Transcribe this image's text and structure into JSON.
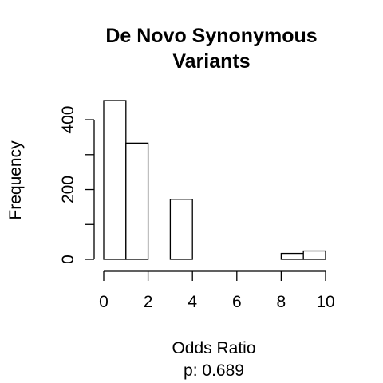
{
  "chart_data": {
    "type": "bar",
    "title_lines": [
      "De Novo Synonymous",
      "Variants"
    ],
    "xlabel": "Odds Ratio",
    "subtitle": "p: 0.689",
    "ylabel": "Frequency",
    "bins": [
      {
        "start": 0,
        "end": 1,
        "count": 455
      },
      {
        "start": 1,
        "end": 2,
        "count": 333
      },
      {
        "start": 2,
        "end": 3,
        "count": 0
      },
      {
        "start": 3,
        "end": 4,
        "count": 172
      },
      {
        "start": 4,
        "end": 5,
        "count": 0
      },
      {
        "start": 5,
        "end": 6,
        "count": 0
      },
      {
        "start": 6,
        "end": 7,
        "count": 0
      },
      {
        "start": 7,
        "end": 8,
        "count": 0
      },
      {
        "start": 8,
        "end": 9,
        "count": 17
      },
      {
        "start": 9,
        "end": 10,
        "count": 24
      }
    ],
    "xlim": [
      0,
      10
    ],
    "ylim": [
      0,
      455
    ],
    "x_ticks": [
      0,
      2,
      4,
      6,
      8,
      10
    ],
    "x_tick_labels": [
      "0",
      "2",
      "4",
      "6",
      "8",
      "10"
    ],
    "y_ticks": [
      0,
      100,
      200,
      300,
      400
    ],
    "y_tick_labels": [
      "0",
      "200",
      "400"
    ],
    "y_labeled_ticks": [
      0,
      200,
      400
    ],
    "grid": false,
    "legend": "none"
  }
}
